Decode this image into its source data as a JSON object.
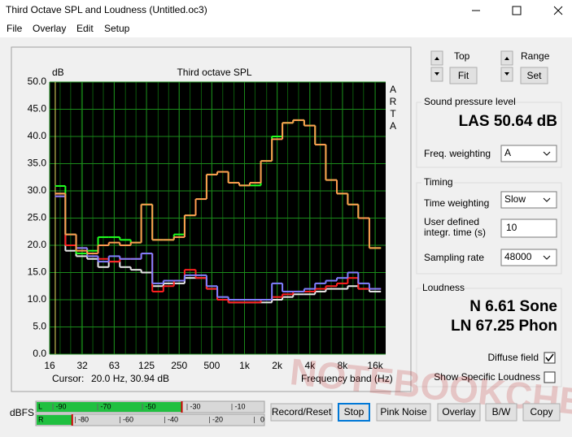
{
  "window": {
    "title": "Third Octave SPL and Loudness (Untitled.oc3)"
  },
  "menu": [
    "File",
    "Overlay",
    "Edit",
    "Setup"
  ],
  "chart_data": {
    "type": "line",
    "title": "Third octave SPL",
    "y_label": "dB",
    "x_label": "Frequency band (Hz)",
    "side_label": "ARTA",
    "cursor_label": "Cursor:",
    "cursor_value": "20.0 Hz, 30.94 dB",
    "log_x": true,
    "grid": true,
    "step": true,
    "x": [
      20,
      25,
      31.5,
      40,
      50,
      63,
      80,
      100,
      125,
      160,
      200,
      250,
      315,
      400,
      500,
      630,
      800,
      1000,
      1250,
      1600,
      2000,
      2500,
      3150,
      4000,
      5000,
      6300,
      8000,
      10000,
      12500,
      16000
    ],
    "xlim": [
      16,
      20000
    ],
    "xticks": [
      16,
      32,
      63,
      125,
      250,
      500,
      {
        "value": 1000,
        "label": "1k"
      },
      {
        "value": 2000,
        "label": "2k"
      },
      {
        "value": 4000,
        "label": "4k"
      },
      {
        "value": 8000,
        "label": "8k"
      },
      {
        "value": 16000,
        "label": "16k"
      }
    ],
    "ylim": [
      0,
      50
    ],
    "yticks": [
      {
        "value": 0,
        "label": "0.0"
      },
      {
        "value": 5,
        "label": "5.0"
      },
      {
        "value": 10,
        "label": "10.0"
      },
      {
        "value": 15,
        "label": "15.0"
      },
      {
        "value": 20,
        "label": "20.0"
      },
      {
        "value": 25,
        "label": "25.0"
      },
      {
        "value": 30,
        "label": "30.0"
      },
      {
        "value": 35,
        "label": "35.0"
      },
      {
        "value": 40,
        "label": "40.0"
      },
      {
        "value": 45,
        "label": "45.0"
      },
      {
        "value": 50,
        "label": "50.0"
      }
    ],
    "series": [
      {
        "color": "#e8e8e8",
        "values": [
          29.5,
          19,
          18,
          17.5,
          16,
          17,
          16,
          15.5,
          15,
          12.5,
          13,
          13,
          14,
          14,
          12,
          10,
          9.5,
          9.5,
          9.5,
          9.5,
          10,
          10.5,
          11,
          11,
          11.5,
          12,
          12,
          12.5,
          12,
          11.5
        ]
      },
      {
        "color": "#ff2020",
        "values": [
          29,
          20,
          19.5,
          18,
          17.5,
          17,
          17.5,
          17.5,
          18.5,
          11.5,
          12.5,
          13.5,
          15.5,
          14,
          12,
          10,
          9.5,
          9.5,
          9.5,
          10,
          10.5,
          11,
          11.5,
          11.5,
          12,
          12.5,
          13,
          14,
          12,
          12
        ]
      },
      {
        "color": "#8080ff",
        "values": [
          29,
          22,
          19.5,
          18,
          17,
          18,
          17.5,
          17.5,
          18.5,
          13,
          13.5,
          13.5,
          14.5,
          14.5,
          12.5,
          10.5,
          10,
          10,
          10,
          10,
          13,
          11.5,
          11.5,
          12,
          13,
          13.5,
          14,
          15,
          13,
          12
        ]
      },
      {
        "color": "#20ff20",
        "values": [
          30.9,
          22,
          18.5,
          19,
          21.5,
          21.5,
          21,
          20.5,
          27.5,
          21,
          21,
          22,
          25.5,
          28.5,
          33,
          33.5,
          31.5,
          31,
          31,
          35.5,
          40,
          42.5,
          43,
          42,
          38.5,
          32,
          29.5,
          27.5,
          25,
          19.5
        ]
      },
      {
        "color": "#ff9a50",
        "values": [
          29.5,
          22,
          19,
          18.5,
          20,
          20.5,
          20,
          20.5,
          27.5,
          21,
          21,
          21.5,
          25.5,
          28.5,
          33,
          33.5,
          31.5,
          31,
          31.5,
          35.5,
          39.5,
          42.5,
          43,
          42,
          38.5,
          32,
          29.5,
          27.5,
          25,
          19.5
        ]
      }
    ]
  },
  "controls": {
    "top_label": "Top",
    "fit": "Fit",
    "range_label": "Range",
    "set": "Set"
  },
  "spl": {
    "title": "Sound pressure level",
    "value": "LAS 50.64 dB",
    "weighting_label": "Freq. weighting",
    "weighting": "A"
  },
  "timing": {
    "title": "Timing",
    "weighting_label": "Time weighting",
    "weighting": "Slow",
    "integr_label": [
      "User defined",
      "integr. time (s)"
    ],
    "integr": "10",
    "rate_label": "Sampling rate",
    "rate": "48000"
  },
  "loudness": {
    "title": "Loudness",
    "sone": "N 6.61 Sone",
    "phon": "LN 67.25 Phon",
    "diffuse": "Diffuse field",
    "specific": "Show Specific Loudness"
  },
  "meter": {
    "label": "dBFS",
    "channels": [
      "L",
      "R"
    ],
    "range": [
      -100,
      0
    ],
    "l_scale": [
      -90,
      -70,
      -50,
      -30,
      -10
    ],
    "r_scale": [
      -80,
      -60,
      -40,
      -20,
      0
    ],
    "l_peak": -36,
    "r_peak": -85
  },
  "buttons": [
    "Record/Reset",
    "Stop",
    "Pink Noise",
    "Overlay",
    "B/W",
    "Copy"
  ],
  "watermark": "NOTEBOOKCHECK"
}
